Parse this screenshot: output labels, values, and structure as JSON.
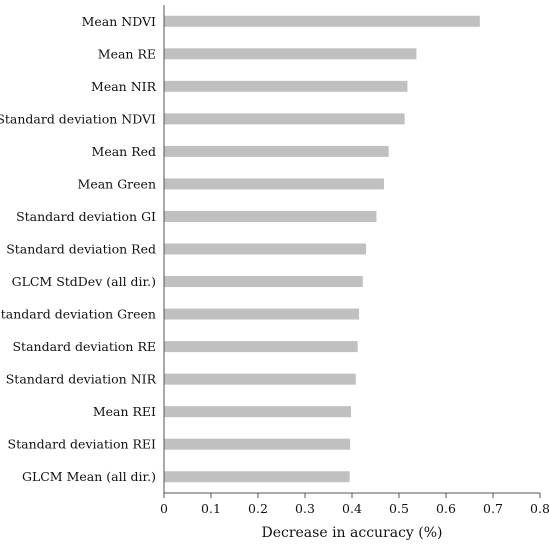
{
  "chart_data": {
    "type": "bar",
    "orientation": "horizontal",
    "categories": [
      "Mean NDVI",
      "Mean RE",
      "Mean NIR",
      "Standard deviation NDVI",
      "Mean Red",
      "Mean Green",
      "Standard deviation GI",
      "Standard deviation Red",
      "GLCM StdDev (all dir.)",
      "Standard deviation Green",
      "Standard deviation RE",
      "Standard deviation NIR",
      "Mean REI",
      "Standard deviation REI",
      "GLCM Mean (all dir.)"
    ],
    "values": [
      0.672,
      0.537,
      0.518,
      0.512,
      0.478,
      0.468,
      0.452,
      0.43,
      0.423,
      0.415,
      0.412,
      0.408,
      0.398,
      0.396,
      0.395
    ],
    "title": "",
    "xlabel": "Decrease in accuracy (%)",
    "ylabel": "",
    "xlim": [
      0,
      0.8
    ],
    "xticks": [
      "0",
      "0.1",
      "0.2",
      "0.3",
      "0.4",
      "0.5",
      "0.6",
      "0.7",
      "0.8"
    ],
    "grid": false,
    "legend": "none",
    "bar_color": "#c0c0c0",
    "axis_color": "#555555"
  }
}
